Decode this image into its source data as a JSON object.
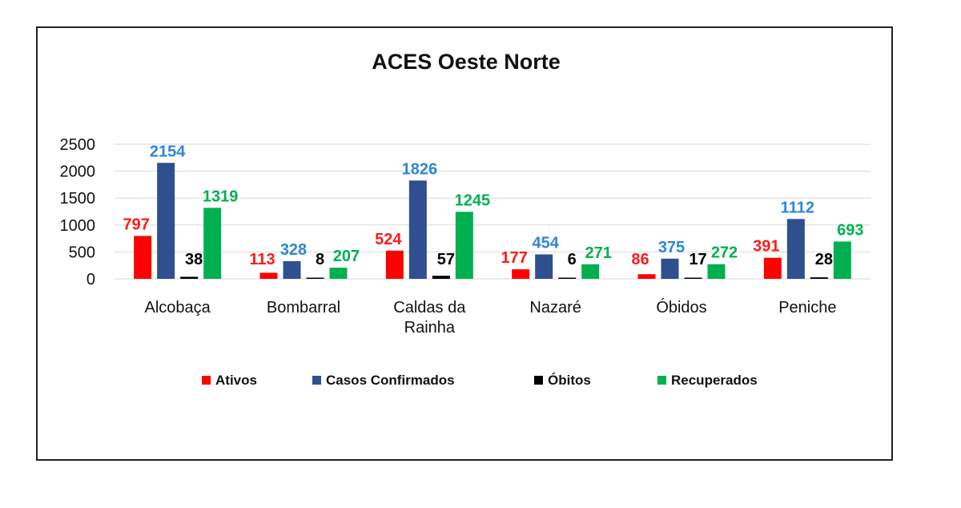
{
  "chart_data": {
    "type": "bar",
    "title": "ACES Oeste Norte",
    "xlabel": "",
    "ylabel": "",
    "categories": [
      [
        "Alcobaça"
      ],
      [
        "Bombarral"
      ],
      [
        "Caldas da",
        "Rainha"
      ],
      [
        "Nazaré"
      ],
      [
        "Óbidos"
      ],
      [
        "Peniche"
      ]
    ],
    "ylim": [
      0,
      2500
    ],
    "yticks": [
      0,
      500,
      1000,
      1500,
      2000,
      2500
    ],
    "grid": true,
    "legend_position": "bottom",
    "series": [
      {
        "name": "Ativos",
        "values": [
          797,
          113,
          524,
          177,
          86,
          391
        ],
        "color": "#ff0000",
        "label_color": "#ff1a1a"
      },
      {
        "name": "Casos Confirmados",
        "values": [
          2154,
          328,
          1826,
          454,
          375,
          1112
        ],
        "color": "#2f4f8f",
        "label_color": "#2e86d6"
      },
      {
        "name": "Óbitos",
        "values": [
          38,
          8,
          57,
          6,
          17,
          28
        ],
        "color": "#000000",
        "label_color": "#000000"
      },
      {
        "name": "Recuperados",
        "values": [
          1319,
          207,
          1245,
          271,
          272,
          693
        ],
        "color": "#00b050",
        "label_color": "#00b050"
      }
    ]
  }
}
